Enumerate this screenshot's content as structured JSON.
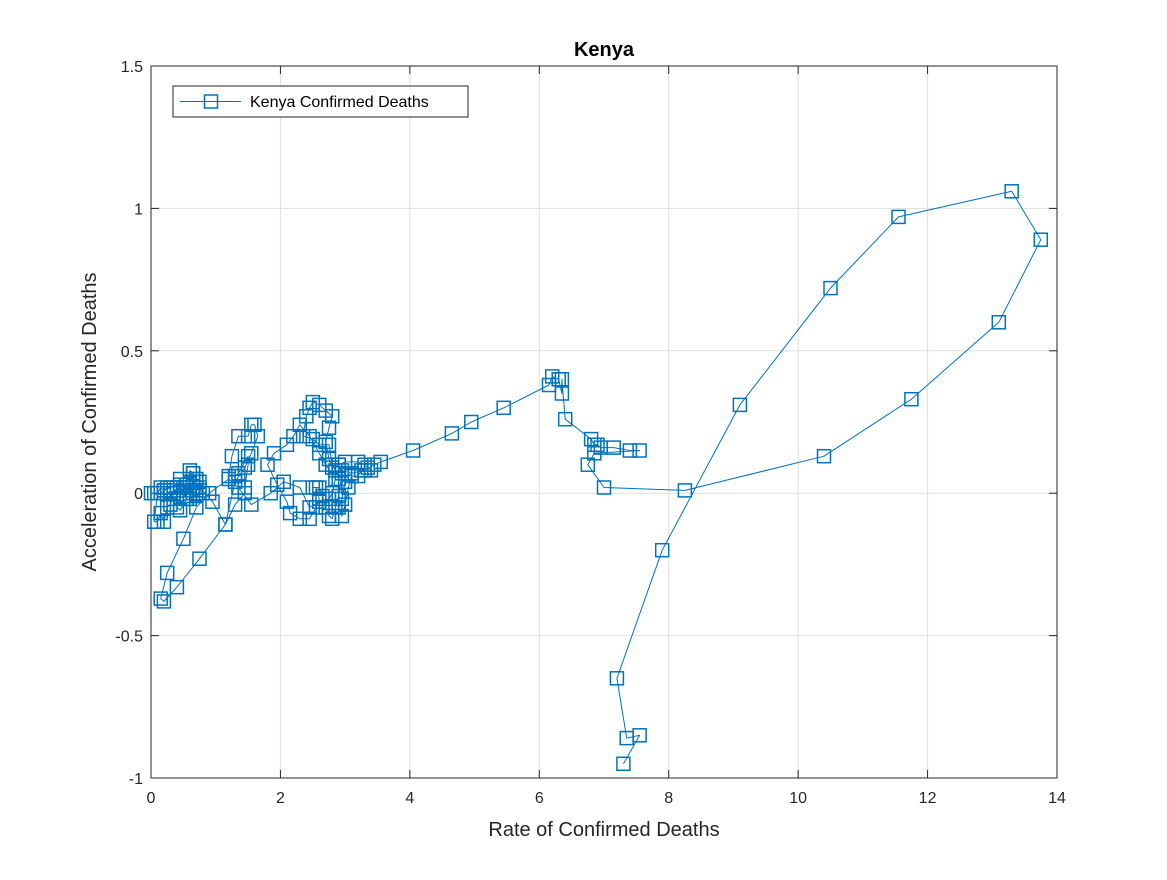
{
  "chart_data": {
    "type": "line",
    "title": "Kenya",
    "xlabel": "Rate of Confirmed Deaths",
    "ylabel": "Acceleration of Confirmed Deaths",
    "xlim": [
      0,
      14
    ],
    "ylim": [
      -1,
      1.5
    ],
    "xticks": [
      0,
      2,
      4,
      6,
      8,
      10,
      12,
      14
    ],
    "xtick_labels": [
      "0",
      "2",
      "4",
      "6",
      "8",
      "10",
      "12",
      "14"
    ],
    "yticks": [
      -1,
      -0.5,
      0,
      0.5,
      1,
      1.5
    ],
    "ytick_labels": [
      "-1",
      "-0.5",
      "0",
      "0.5",
      "1",
      "1.5"
    ],
    "grid": true,
    "legend_position": "top-left",
    "marker": "square",
    "series": [
      {
        "name": "Kenya Confirmed Deaths",
        "color": "#0072BD",
        "points": [
          [
            0.0,
            0.0
          ],
          [
            0.05,
            0.0
          ],
          [
            0.1,
            0.0
          ],
          [
            0.15,
            0.0
          ],
          [
            0.2,
            0.01
          ],
          [
            0.25,
            0.02
          ],
          [
            0.3,
            0.02
          ],
          [
            0.2,
            0.01
          ],
          [
            0.15,
            0.02
          ],
          [
            0.1,
            0.0
          ],
          [
            0.05,
            -0.1
          ],
          [
            0.1,
            -0.1
          ],
          [
            0.15,
            -0.07
          ],
          [
            0.2,
            -0.1
          ],
          [
            0.25,
            -0.05
          ],
          [
            0.3,
            -0.04
          ],
          [
            0.35,
            0.0
          ],
          [
            0.4,
            0.02
          ],
          [
            0.45,
            0.05
          ],
          [
            0.5,
            0.01
          ],
          [
            0.55,
            -0.02
          ],
          [
            0.45,
            -0.06
          ],
          [
            0.4,
            -0.05
          ],
          [
            0.35,
            -0.02
          ],
          [
            0.3,
            0.0
          ],
          [
            0.35,
            0.01
          ],
          [
            0.45,
            0.02
          ],
          [
            0.55,
            0.03
          ],
          [
            0.6,
            0.04
          ],
          [
            0.65,
            0.07
          ],
          [
            0.7,
            0.05
          ],
          [
            0.75,
            0.04
          ],
          [
            0.7,
            0.01
          ],
          [
            0.65,
            0.0
          ],
          [
            0.6,
            -0.02
          ],
          [
            0.7,
            -0.01
          ],
          [
            0.8,
            0.0
          ],
          [
            0.7,
            0.02
          ],
          [
            0.65,
            0.05
          ],
          [
            0.6,
            0.08
          ],
          [
            0.65,
            0.07
          ],
          [
            0.7,
            0.04
          ],
          [
            0.75,
            0.01
          ],
          [
            0.7,
            -0.01
          ],
          [
            0.6,
            0.0
          ],
          [
            0.5,
            -0.01
          ],
          [
            0.45,
            0.03
          ],
          [
            0.55,
            0.02
          ],
          [
            0.65,
            0.04
          ],
          [
            0.75,
            0.02
          ],
          [
            0.95,
            -0.03
          ],
          [
            1.15,
            -0.11
          ],
          [
            1.3,
            -0.04
          ],
          [
            1.45,
            0.0
          ],
          [
            1.45,
            0.02
          ],
          [
            1.5,
            0.1
          ],
          [
            1.5,
            0.13
          ],
          [
            1.35,
            0.07
          ],
          [
            1.3,
            0.06
          ],
          [
            1.2,
            0.06
          ],
          [
            1.25,
            0.13
          ],
          [
            1.35,
            0.2
          ],
          [
            1.5,
            0.2
          ],
          [
            1.55,
            0.24
          ],
          [
            1.6,
            0.24
          ],
          [
            1.65,
            0.2
          ],
          [
            1.55,
            0.14
          ],
          [
            1.45,
            0.09
          ],
          [
            1.3,
            0.04
          ],
          [
            1.15,
            -0.11
          ],
          [
            0.75,
            -0.23
          ],
          [
            0.4,
            -0.33
          ],
          [
            0.2,
            -0.38
          ],
          [
            0.15,
            -0.37
          ],
          [
            0.25,
            -0.28
          ],
          [
            0.5,
            -0.16
          ],
          [
            0.7,
            -0.05
          ],
          [
            0.9,
            0.0
          ],
          [
            1.2,
            0.05
          ],
          [
            1.35,
            0.02
          ],
          [
            1.55,
            -0.04
          ],
          [
            1.85,
            0.0
          ],
          [
            2.05,
            0.04
          ],
          [
            2.3,
            0.02
          ],
          [
            2.45,
            -0.05
          ],
          [
            2.6,
            -0.03
          ],
          [
            2.75,
            -0.02
          ],
          [
            2.8,
            0.0
          ],
          [
            2.85,
            0.05
          ],
          [
            2.7,
            0.1
          ],
          [
            2.6,
            0.14
          ],
          [
            2.45,
            0.2
          ],
          [
            2.3,
            0.24
          ],
          [
            2.2,
            0.2
          ],
          [
            2.1,
            0.17
          ],
          [
            1.9,
            0.14
          ],
          [
            1.8,
            0.1
          ],
          [
            1.95,
            0.03
          ],
          [
            2.1,
            -0.03
          ],
          [
            2.15,
            -0.07
          ],
          [
            2.3,
            -0.09
          ],
          [
            2.45,
            -0.09
          ],
          [
            2.55,
            -0.05
          ],
          [
            2.6,
            -0.02
          ],
          [
            2.55,
            0.02
          ],
          [
            2.5,
            0.02
          ],
          [
            2.6,
            0.02
          ],
          [
            2.65,
            -0.01
          ],
          [
            2.7,
            -0.05
          ],
          [
            2.75,
            -0.08
          ],
          [
            2.8,
            -0.09
          ],
          [
            2.85,
            -0.05
          ],
          [
            2.9,
            -0.01
          ],
          [
            2.95,
            0.07
          ],
          [
            2.9,
            0.1
          ],
          [
            2.8,
            0.09
          ],
          [
            2.75,
            0.12
          ],
          [
            2.7,
            0.18
          ],
          [
            2.75,
            0.23
          ],
          [
            2.8,
            0.27
          ],
          [
            2.7,
            0.29
          ],
          [
            2.6,
            0.31
          ],
          [
            2.5,
            0.32
          ],
          [
            2.45,
            0.3
          ],
          [
            2.4,
            0.27
          ],
          [
            2.35,
            0.2
          ],
          [
            2.5,
            0.19
          ],
          [
            2.6,
            0.17
          ],
          [
            2.75,
            0.17
          ],
          [
            2.8,
            0.1
          ],
          [
            2.85,
            0.08
          ],
          [
            2.9,
            0.05
          ],
          [
            3.0,
            0.04
          ],
          [
            2.95,
            -0.02
          ],
          [
            2.9,
            -0.05
          ],
          [
            2.95,
            -0.08
          ],
          [
            3.0,
            -0.04
          ],
          [
            3.05,
            0.02
          ],
          [
            3.1,
            0.06
          ],
          [
            3.2,
            0.06
          ],
          [
            3.25,
            0.08
          ],
          [
            3.35,
            0.09
          ],
          [
            3.4,
            0.08
          ],
          [
            3.3,
            0.1
          ],
          [
            3.2,
            0.11
          ],
          [
            3.0,
            0.11
          ],
          [
            2.9,
            0.1
          ],
          [
            2.95,
            0.08
          ],
          [
            3.1,
            0.07
          ],
          [
            3.3,
            0.08
          ],
          [
            3.45,
            0.1
          ],
          [
            3.55,
            0.11
          ],
          [
            4.05,
            0.15
          ],
          [
            4.65,
            0.21
          ],
          [
            4.95,
            0.25
          ],
          [
            5.45,
            0.3
          ],
          [
            6.15,
            0.38
          ],
          [
            6.2,
            0.41
          ],
          [
            6.3,
            0.4
          ],
          [
            6.35,
            0.35
          ],
          [
            6.35,
            0.4
          ],
          [
            6.4,
            0.26
          ],
          [
            6.8,
            0.19
          ],
          [
            6.85,
            0.17
          ],
          [
            6.9,
            0.17
          ],
          [
            6.95,
            0.16
          ],
          [
            7.15,
            0.16
          ],
          [
            7.4,
            0.15
          ],
          [
            7.55,
            0.15
          ],
          [
            6.85,
            0.14
          ],
          [
            6.75,
            0.1
          ],
          [
            7.0,
            0.02
          ],
          [
            8.25,
            0.01
          ],
          [
            10.4,
            0.13
          ],
          [
            11.75,
            0.33
          ],
          [
            13.1,
            0.6
          ],
          [
            13.75,
            0.89
          ],
          [
            13.3,
            1.06
          ],
          [
            11.55,
            0.97
          ],
          [
            10.5,
            0.72
          ],
          [
            9.1,
            0.31
          ],
          [
            7.9,
            -0.2
          ],
          [
            7.2,
            -0.65
          ],
          [
            7.35,
            -0.86
          ],
          [
            7.55,
            -0.85
          ],
          [
            7.3,
            -0.95
          ]
        ]
      }
    ]
  }
}
